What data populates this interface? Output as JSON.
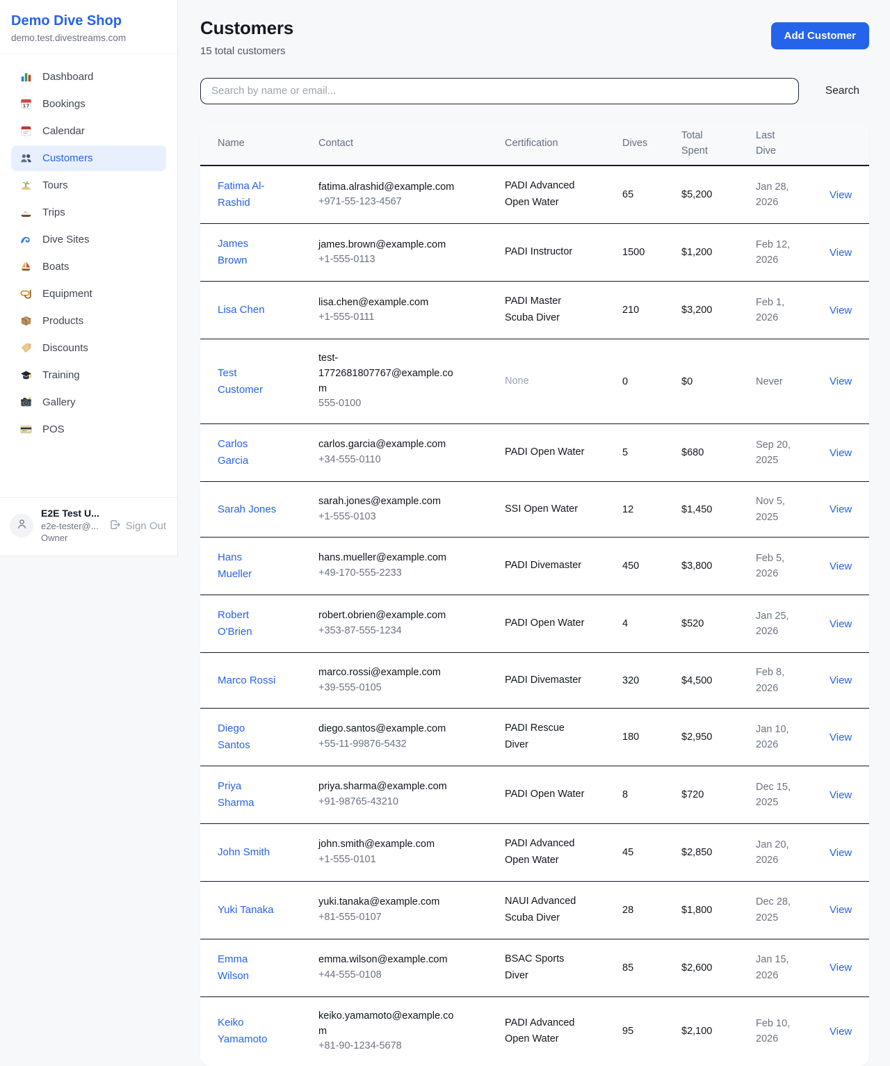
{
  "sidebar": {
    "shop_name": "Demo Dive Shop",
    "shop_domain": "demo.test.divestreams.com",
    "items": [
      {
        "label": "Dashboard",
        "icon": "bar-chart-icon",
        "active": false
      },
      {
        "label": "Bookings",
        "icon": "calendar-icon",
        "active": false
      },
      {
        "label": "Calendar",
        "icon": "tear-calendar-icon",
        "active": false
      },
      {
        "label": "Customers",
        "icon": "users-icon",
        "active": true
      },
      {
        "label": "Tours",
        "icon": "island-icon",
        "active": false
      },
      {
        "label": "Trips",
        "icon": "motorboat-icon",
        "active": false
      },
      {
        "label": "Dive Sites",
        "icon": "wave-icon",
        "active": false
      },
      {
        "label": "Boats",
        "icon": "sailboat-icon",
        "active": false
      },
      {
        "label": "Equipment",
        "icon": "diving-mask-icon",
        "active": false
      },
      {
        "label": "Products",
        "icon": "package-icon",
        "active": false
      },
      {
        "label": "Discounts",
        "icon": "tag-icon",
        "active": false
      },
      {
        "label": "Training",
        "icon": "graduation-cap-icon",
        "active": false
      },
      {
        "label": "Gallery",
        "icon": "camera-icon",
        "active": false
      },
      {
        "label": "POS",
        "icon": "credit-card-icon",
        "active": false
      }
    ],
    "user": {
      "name": "E2E Test U...",
      "email": "e2e-tester@...",
      "role": "Owner",
      "sign_out_label": "Sign Out"
    }
  },
  "header": {
    "title": "Customers",
    "subtitle": "15 total customers",
    "add_customer_label": "Add Customer"
  },
  "search": {
    "placeholder": "Search by name or email...",
    "value": "",
    "button_label": "Search"
  },
  "table": {
    "columns": [
      "Name",
      "Contact",
      "Certification",
      "Dives",
      "Total Spent",
      "Last Dive"
    ],
    "rows": [
      {
        "name": "Fatima Al-Rashid",
        "email": "fatima.alrashid@example.com",
        "phone": "+971-55-123-4567",
        "certification": "PADI Advanced Open Water",
        "dives": "65",
        "total_spent": "$5,200",
        "last_dive": "Jan 28, 2026",
        "action": "View"
      },
      {
        "name": "James Brown",
        "email": "james.brown@example.com",
        "phone": "+1-555-0113",
        "certification": "PADI Instructor",
        "dives": "1500",
        "total_spent": "$1,200",
        "last_dive": "Feb 12, 2026",
        "action": "View"
      },
      {
        "name": "Lisa Chen",
        "email": "lisa.chen@example.com",
        "phone": "+1-555-0111",
        "certification": "PADI Master Scuba Diver",
        "dives": "210",
        "total_spent": "$3,200",
        "last_dive": "Feb 1, 2026",
        "action": "View"
      },
      {
        "name": "Test Customer",
        "email": "test-1772681807767@example.com",
        "phone": "555-0100",
        "certification": "None",
        "dives": "0",
        "total_spent": "$0",
        "last_dive": "Never",
        "action": "View"
      },
      {
        "name": "Carlos Garcia",
        "email": "carlos.garcia@example.com",
        "phone": "+34-555-0110",
        "certification": "PADI Open Water",
        "dives": "5",
        "total_spent": "$680",
        "last_dive": "Sep 20, 2025",
        "action": "View"
      },
      {
        "name": "Sarah Jones",
        "email": "sarah.jones@example.com",
        "phone": "+1-555-0103",
        "certification": "SSI Open Water",
        "dives": "12",
        "total_spent": "$1,450",
        "last_dive": "Nov 5, 2025",
        "action": "View"
      },
      {
        "name": "Hans Mueller",
        "email": "hans.mueller@example.com",
        "phone": "+49-170-555-2233",
        "certification": "PADI Divemaster",
        "dives": "450",
        "total_spent": "$3,800",
        "last_dive": "Feb 5, 2026",
        "action": "View"
      },
      {
        "name": "Robert O'Brien",
        "email": "robert.obrien@example.com",
        "phone": "+353-87-555-1234",
        "certification": "PADI Open Water",
        "dives": "4",
        "total_spent": "$520",
        "last_dive": "Jan 25, 2026",
        "action": "View"
      },
      {
        "name": "Marco Rossi",
        "email": "marco.rossi@example.com",
        "phone": "+39-555-0105",
        "certification": "PADI Divemaster",
        "dives": "320",
        "total_spent": "$4,500",
        "last_dive": "Feb 8, 2026",
        "action": "View"
      },
      {
        "name": "Diego Santos",
        "email": "diego.santos@example.com",
        "phone": "+55-11-99876-5432",
        "certification": "PADI Rescue Diver",
        "dives": "180",
        "total_spent": "$2,950",
        "last_dive": "Jan 10, 2026",
        "action": "View"
      },
      {
        "name": "Priya Sharma",
        "email": "priya.sharma@example.com",
        "phone": "+91-98765-43210",
        "certification": "PADI Open Water",
        "dives": "8",
        "total_spent": "$720",
        "last_dive": "Dec 15, 2025",
        "action": "View"
      },
      {
        "name": "John Smith",
        "email": "john.smith@example.com",
        "phone": "+1-555-0101",
        "certification": "PADI Advanced Open Water",
        "dives": "45",
        "total_spent": "$2,850",
        "last_dive": "Jan 20, 2026",
        "action": "View"
      },
      {
        "name": "Yuki Tanaka",
        "email": "yuki.tanaka@example.com",
        "phone": "+81-555-0107",
        "certification": "NAUI Advanced Scuba Diver",
        "dives": "28",
        "total_spent": "$1,800",
        "last_dive": "Dec 28, 2025",
        "action": "View"
      },
      {
        "name": "Emma Wilson",
        "email": "emma.wilson@example.com",
        "phone": "+44-555-0108",
        "certification": "BSAC Sports Diver",
        "dives": "85",
        "total_spent": "$2,600",
        "last_dive": "Jan 15, 2026",
        "action": "View"
      },
      {
        "name": "Keiko Yamamoto",
        "email": "keiko.yamamoto@example.com",
        "phone": "+81-90-1234-5678",
        "certification": "PADI Advanced Open Water",
        "dives": "95",
        "total_spent": "$2,100",
        "last_dive": "Feb 10, 2026",
        "action": "View"
      }
    ]
  },
  "colors": {
    "accent_blue": "#2563eb",
    "active_item_bg": "#e9f0fd",
    "page_bg": "#f7f8fa",
    "card_bg": "#ffffff",
    "table_header_bg": "#f8f9fb",
    "table_header_text": "#626e7f",
    "dark_border": "#141927",
    "muted_text": "#6b7280",
    "disabled_text": "#9aa3b2",
    "body_text": "#10151d"
  }
}
